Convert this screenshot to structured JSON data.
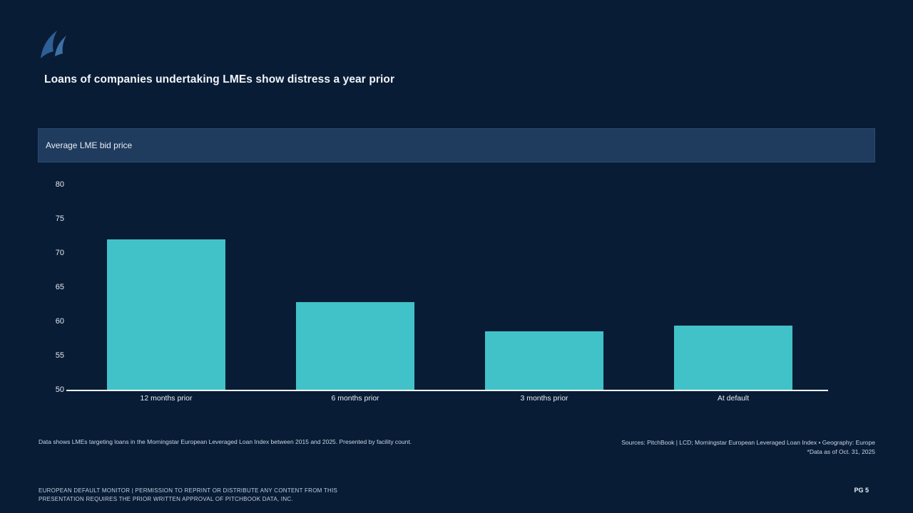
{
  "slide": {
    "title": "Loans of companies undertaking LMEs show distress a year prior",
    "page_label": "PG 5",
    "footnote": "Data shows LMEs targeting loans in the Morningstar European Leveraged Loan Index between 2015 and 2025. Presented by facility count.",
    "sources_line1": "Sources: PitchBook | LCD; Morningstar European Leveraged Loan Index • Geography: Europe",
    "sources_line2": "*Data as of  Oct. 31, 2025",
    "disclaimer_line1": "EUROPEAN DEFAULT MONITOR | PERMISSION TO REPRINT OR DISTRIBUTE ANY CONTENT  FROM THIS",
    "disclaimer_line2": "PRESENTATION REQUIRES THE PRIOR WRITTEN APPROVAL OF PITCHBOOK DATA, INC.",
    "logo": "pitchbook-logo"
  },
  "chart_data": {
    "type": "bar",
    "title": "Average LME bid price",
    "categories": [
      "12 months prior",
      "6 months prior",
      "3 months prior",
      "At default"
    ],
    "values": [
      72.0,
      62.8,
      58.5,
      59.4
    ],
    "xlabel": "",
    "ylabel": "",
    "ylim": [
      50,
      80
    ],
    "yticks": [
      50,
      55,
      60,
      65,
      70,
      75,
      80
    ],
    "grid": false,
    "legend": "none"
  },
  "colors": {
    "background": "#081C36",
    "panel_header": "#1F3C5E",
    "bar": "#41C2C8",
    "axis": "#FFFFFF",
    "logo_blue": "#2E5F95"
  }
}
